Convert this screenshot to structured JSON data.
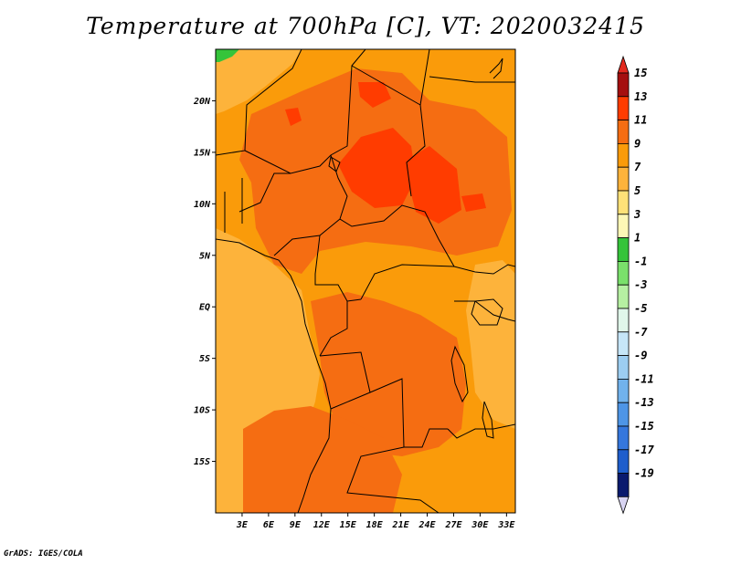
{
  "title": "Temperature at 700hPa [C], VT: 2020032415",
  "footer": "GrADS: IGES/COLA",
  "map": {
    "projection": "lat-lon",
    "lon_range": [
      0,
      34
    ],
    "lat_range": [
      -20,
      25
    ],
    "lat_ticks": [
      {
        "value": 20,
        "label": "20N"
      },
      {
        "value": 15,
        "label": "15N"
      },
      {
        "value": 10,
        "label": "10N"
      },
      {
        "value": 5,
        "label": "5N"
      },
      {
        "value": 0,
        "label": "EQ"
      },
      {
        "value": -5,
        "label": "5S"
      },
      {
        "value": -10,
        "label": "10S"
      },
      {
        "value": -15,
        "label": "15S"
      }
    ],
    "lon_ticks": [
      {
        "value": 3,
        "label": "3E"
      },
      {
        "value": 6,
        "label": "6E"
      },
      {
        "value": 9,
        "label": "9E"
      },
      {
        "value": 12,
        "label": "12E"
      },
      {
        "value": 15,
        "label": "15E"
      },
      {
        "value": 18,
        "label": "18E"
      },
      {
        "value": 21,
        "label": "21E"
      },
      {
        "value": 24,
        "label": "24E"
      },
      {
        "value": 27,
        "label": "27E"
      },
      {
        "value": 30,
        "label": "30E"
      },
      {
        "value": 33,
        "label": "33E"
      }
    ]
  },
  "colorbar": {
    "levels": [
      {
        "label": "15",
        "color": "#a50f0f"
      },
      {
        "label": "13",
        "color": "#ff3c00"
      },
      {
        "label": "11",
        "color": "#f56d12"
      },
      {
        "label": "9",
        "color": "#fa9b0a"
      },
      {
        "label": "7",
        "color": "#fdb33b"
      },
      {
        "label": "5",
        "color": "#fee178"
      },
      {
        "label": "3",
        "color": "#fdf7b6"
      },
      {
        "label": "1",
        "color": "#35c43a"
      },
      {
        "label": "-1",
        "color": "#7ae06b"
      },
      {
        "label": "-3",
        "color": "#b6f0a2"
      },
      {
        "label": "-5",
        "color": "#e0f6ea"
      },
      {
        "label": "-7",
        "color": "#c6e6f8"
      },
      {
        "label": "-9",
        "color": "#9ccdf1"
      },
      {
        "label": "-11",
        "color": "#71b2ec"
      },
      {
        "label": "-13",
        "color": "#4e95e6"
      },
      {
        "label": "-15",
        "color": "#3577dd"
      },
      {
        "label": "-17",
        "color": "#1f5ecc"
      },
      {
        "label": "-19",
        "color": "#1339ad"
      }
    ],
    "bottom_color": "#0a1a6e",
    "below_color": "#d8d4f2",
    "above_color": "#e32a1f"
  },
  "field_colors": {
    "base": "#fa9b0a",
    "warm": "#f56d12",
    "hot": "#ff3c00",
    "cool": "#fdb33b",
    "cold_corner": "#35c43a"
  }
}
